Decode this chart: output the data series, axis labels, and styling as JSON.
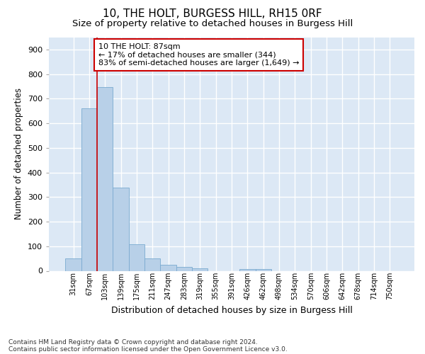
{
  "title": "10, THE HOLT, BURGESS HILL, RH15 0RF",
  "subtitle": "Size of property relative to detached houses in Burgess Hill",
  "xlabel": "Distribution of detached houses by size in Burgess Hill",
  "ylabel": "Number of detached properties",
  "footnote1": "Contains HM Land Registry data © Crown copyright and database right 2024.",
  "footnote2": "Contains public sector information licensed under the Open Government Licence v3.0.",
  "bar_labels": [
    "31sqm",
    "67sqm",
    "103sqm",
    "139sqm",
    "175sqm",
    "211sqm",
    "247sqm",
    "283sqm",
    "319sqm",
    "355sqm",
    "391sqm",
    "426sqm",
    "462sqm",
    "498sqm",
    "534sqm",
    "570sqm",
    "606sqm",
    "642sqm",
    "678sqm",
    "714sqm",
    "750sqm"
  ],
  "bar_values": [
    50,
    662,
    748,
    338,
    107,
    50,
    24,
    15,
    11,
    0,
    0,
    8,
    8,
    0,
    0,
    0,
    0,
    0,
    0,
    0,
    0
  ],
  "bar_color": "#b8d0e8",
  "bar_edge_color": "#7aaad0",
  "vline_color": "#cc0000",
  "annotation_text": "10 THE HOLT: 87sqm\n← 17% of detached houses are smaller (344)\n83% of semi-detached houses are larger (1,649) →",
  "annotation_box_color": "#ffffff",
  "annotation_box_edge_color": "#cc0000",
  "ylim": [
    0,
    950
  ],
  "yticks": [
    0,
    100,
    200,
    300,
    400,
    500,
    600,
    700,
    800,
    900
  ],
  "background_color": "#dce8f5",
  "grid_color": "#ffffff",
  "title_fontsize": 11,
  "subtitle_fontsize": 9.5,
  "ylabel_fontsize": 8.5,
  "xlabel_fontsize": 9,
  "annotation_fontsize": 8,
  "footnote_fontsize": 6.5
}
